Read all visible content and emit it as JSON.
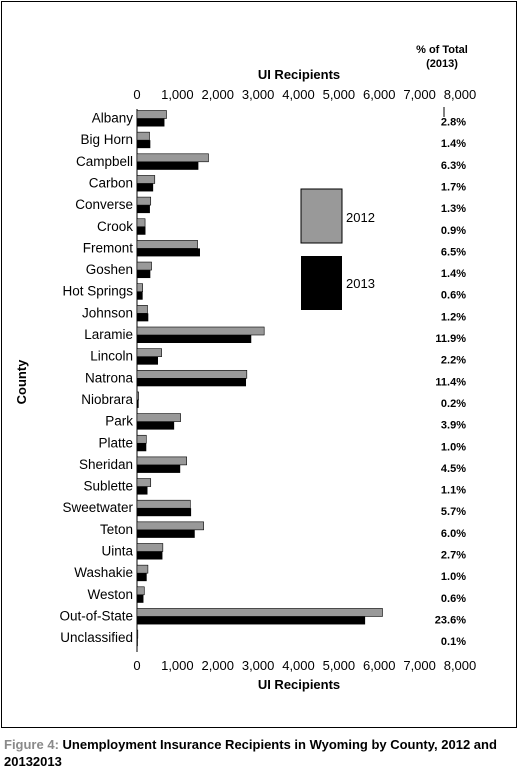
{
  "figure": {
    "caption_prefix": "Figure 4: ",
    "caption_title": "Unemployment Insurance Recipients in Wyoming by County, 2012 and 20132013"
  },
  "chart_data": {
    "type": "bar",
    "orientation": "horizontal",
    "title": "",
    "xlabel": "UI Recipients",
    "ylabel": "County",
    "xlim": [
      0,
      8000
    ],
    "xticks": [
      "0",
      "1,000",
      "2,000",
      "3,000",
      "4,000",
      "5,000",
      "6,000",
      "7,000",
      "8,000"
    ],
    "grid": false,
    "legend_position": "middle-right",
    "colors": {
      "2012": "#999999",
      "2013": "#000000"
    },
    "pct_header": "% of Total (2013)",
    "categories": [
      "Albany",
      "Big Horn",
      "Campbell",
      "Carbon",
      "Converse",
      "Crook",
      "Fremont",
      "Goshen",
      "Hot Springs",
      "Johnson",
      "Laramie",
      "Lincoln",
      "Natrona",
      "Niobrara",
      "Park",
      "Platte",
      "Sheridan",
      "Sublette",
      "Sweetwater",
      "Teton",
      "Uinta",
      "Washakie",
      "Weston",
      "Out-of-State",
      "Unclassified"
    ],
    "series": [
      {
        "name": "2012",
        "values": [
          730,
          310,
          1770,
          440,
          340,
          200,
          1500,
          360,
          140,
          260,
          3150,
          610,
          2720,
          40,
          1080,
          230,
          1230,
          340,
          1320,
          1650,
          640,
          270,
          180,
          6080,
          20
        ]
      },
      {
        "name": "2013",
        "values": [
          680,
          330,
          1520,
          400,
          320,
          210,
          1560,
          330,
          140,
          280,
          2830,
          520,
          2700,
          40,
          920,
          230,
          1070,
          260,
          1340,
          1430,
          630,
          240,
          160,
          5650,
          20
        ]
      }
    ],
    "pct_total_2013": [
      "2.8%",
      "1.4%",
      "6.3%",
      "1.7%",
      "1.3%",
      "0.9%",
      "6.5%",
      "1.4%",
      "0.6%",
      "1.2%",
      "11.9%",
      "2.2%",
      "11.4%",
      "0.2%",
      "3.9%",
      "1.0%",
      "4.5%",
      "1.1%",
      "5.7%",
      "6.0%",
      "2.7%",
      "1.0%",
      "0.6%",
      "23.6%",
      "0.1%"
    ]
  }
}
